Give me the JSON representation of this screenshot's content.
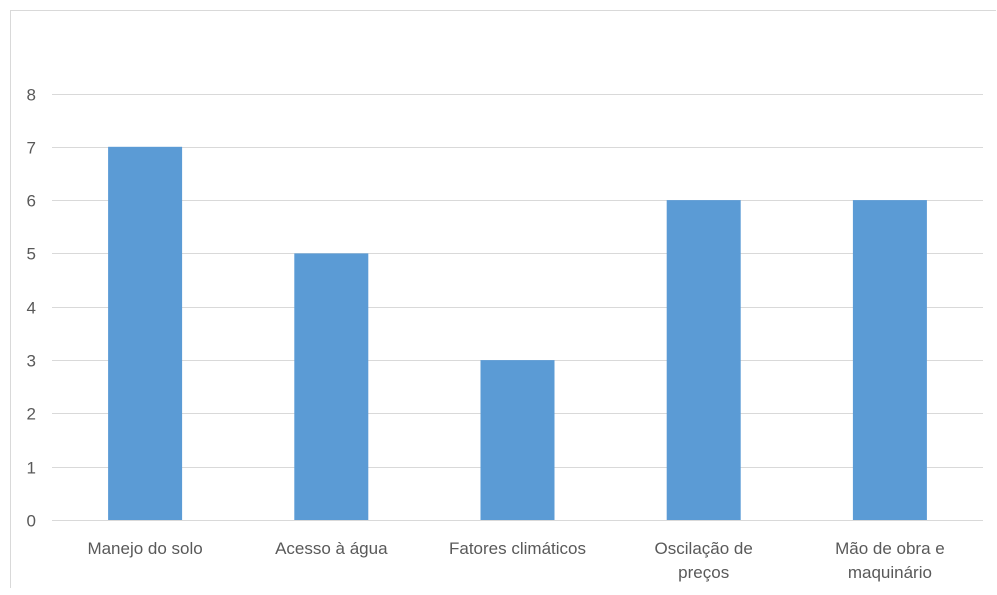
{
  "chart_data": {
    "type": "bar",
    "categories": [
      [
        "Manejo do solo"
      ],
      [
        "Acesso à água"
      ],
      [
        "Fatores climáticos"
      ],
      [
        "Oscilação de",
        "preços"
      ],
      [
        "Mão de obra e",
        "maquinário"
      ]
    ],
    "values": [
      7,
      5,
      3,
      6,
      6
    ],
    "ylim": [
      0,
      8
    ],
    "yticks": [
      "0",
      "1",
      "2",
      "3",
      "4",
      "5",
      "6",
      "7",
      "8"
    ],
    "grid": true,
    "legend": "none",
    "colors": {
      "bar": "#5b9bd5",
      "grid": "#d9d9d9",
      "axis_text": "#595959"
    }
  }
}
